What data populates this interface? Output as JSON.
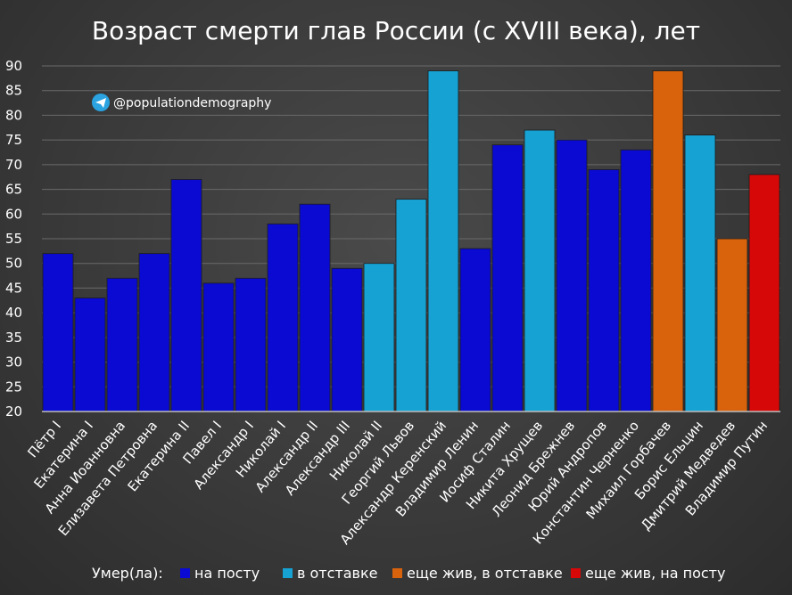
{
  "chart_data": {
    "type": "bar",
    "title": "Возраст смерти глав России (с XVIII века), лет",
    "handle": "@populationdemography",
    "ylim": [
      20,
      90
    ],
    "yticks": [
      20,
      25,
      30,
      35,
      40,
      45,
      50,
      55,
      60,
      65,
      70,
      75,
      80,
      85,
      90
    ],
    "grid": true,
    "categories": [
      "Пётр I",
      "Екатерина I",
      "Анна Иоанновна",
      "Елизавета Петровна",
      "Екатерина II",
      "Павел I",
      "Александр I",
      "Николай I",
      "Александр II",
      "Александр III",
      "Николай II",
      "Георгий Львов",
      "Александр Керенский",
      "Владимир Ленин",
      "Иосиф Сталин",
      "Никита Хрущев",
      "Леонид Брежнев",
      "Юрий Андропов",
      "Константин Черненко",
      "Михаил Горбачев",
      "Борис Ельцин",
      "Дмитрий Медведев",
      "Владимир Путин"
    ],
    "values": [
      52,
      43,
      47,
      52,
      67,
      46,
      47,
      58,
      62,
      49,
      50,
      63,
      89,
      53,
      74,
      77,
      75,
      69,
      73,
      89,
      76,
      55,
      68
    ],
    "status": [
      0,
      0,
      0,
      0,
      0,
      0,
      0,
      0,
      0,
      0,
      1,
      1,
      1,
      0,
      0,
      1,
      0,
      0,
      0,
      2,
      1,
      2,
      3
    ],
    "legend": {
      "label": "Умер(ла):",
      "placement": "bottom",
      "items": [
        {
          "name": "на посту",
          "color": "#0a0ad2"
        },
        {
          "name": "в отставке",
          "color": "#16a2d3"
        },
        {
          "name": "еще жив, в отставке",
          "color": "#d9620c"
        },
        {
          "name": "еще жив, на посту",
          "color": "#d60808"
        }
      ]
    }
  }
}
